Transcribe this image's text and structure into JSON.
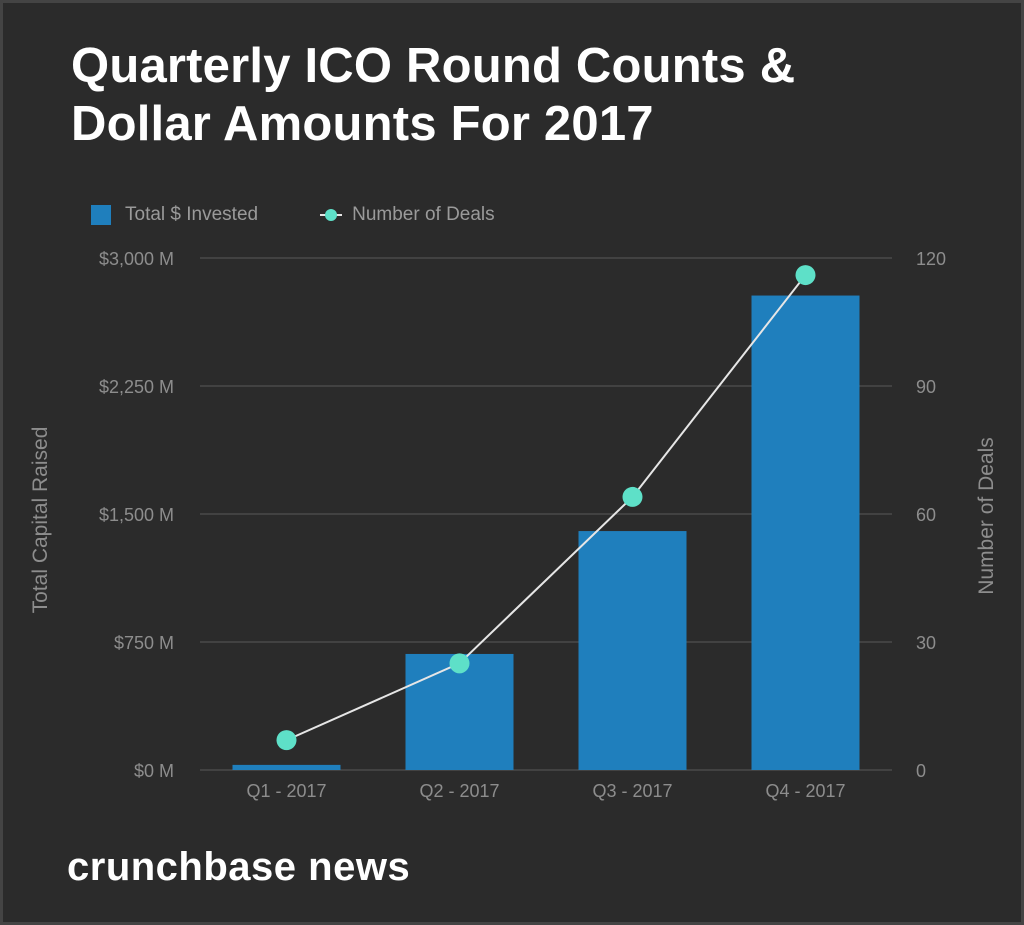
{
  "title_lines": [
    "Quarterly ICO Round Counts &",
    "Dollar Amounts For 2017"
  ],
  "legend": {
    "bars_label": "Total $ Invested",
    "line_label": "Number of Deals"
  },
  "brand": "crunchbase news",
  "colors": {
    "background": "#2b2b2b",
    "bar": "#1f7fbd",
    "line": "#e6e6e6",
    "point": "#5ee0c8",
    "grid": "#5a5a5a",
    "text": "#8d8d8d"
  },
  "chart_data": {
    "type": "bar",
    "title": "Quarterly ICO Round Counts & Dollar Amounts For 2017",
    "categories": [
      "Q1 - 2017",
      "Q2 - 2017",
      "Q3 - 2017",
      "Q4 - 2017"
    ],
    "series": [
      {
        "name": "Total $ Invested",
        "type": "bar",
        "axis": "left",
        "values": [
          30,
          680,
          1400,
          2780
        ]
      },
      {
        "name": "Number of Deals",
        "type": "line",
        "axis": "right",
        "values": [
          7,
          25,
          64,
          116
        ]
      }
    ],
    "ylabel": "Total Capital Raised",
    "y2label": "Number of Deals",
    "ylim": [
      0,
      3000
    ],
    "y2lim": [
      0,
      120
    ],
    "yticks": [
      0,
      750,
      1500,
      2250,
      3000
    ],
    "ytick_labels": [
      "$0 M",
      "$750 M",
      "$1,500 M",
      "$2,250 M",
      "$3,000 M"
    ],
    "y2ticks": [
      0,
      30,
      60,
      90,
      120
    ],
    "y2tick_labels": [
      "0",
      "30",
      "60",
      "90",
      "120"
    ],
    "grid": true,
    "legend_position": "top-left"
  }
}
